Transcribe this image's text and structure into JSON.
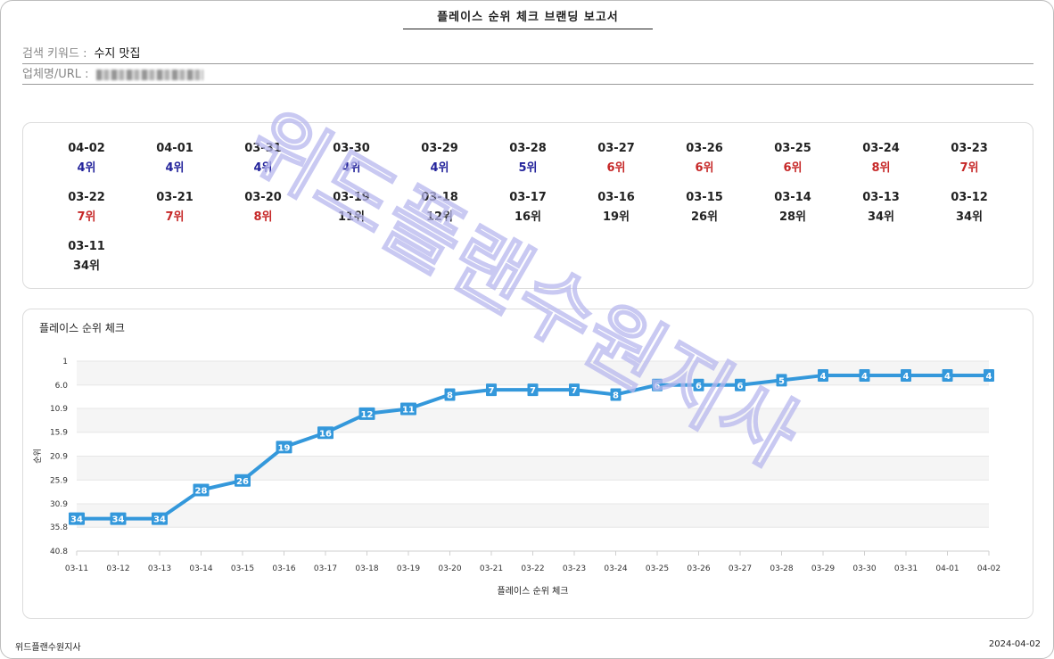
{
  "report": {
    "title": "플레이스 순위 체크 브랜딩 보고서",
    "keyword_label": "검색 키워드 :",
    "keyword_value": "수지 맛집",
    "url_label": "업체명/URL :"
  },
  "rank_grid": [
    {
      "date": "04-02",
      "rank": "4위",
      "color": "#23239b"
    },
    {
      "date": "04-01",
      "rank": "4위",
      "color": "#23239b"
    },
    {
      "date": "03-31",
      "rank": "4위",
      "color": "#23239b"
    },
    {
      "date": "03-30",
      "rank": "4위",
      "color": "#23239b"
    },
    {
      "date": "03-29",
      "rank": "4위",
      "color": "#23239b"
    },
    {
      "date": "03-28",
      "rank": "5위",
      "color": "#23239b"
    },
    {
      "date": "03-27",
      "rank": "6위",
      "color": "#c62828"
    },
    {
      "date": "03-26",
      "rank": "6위",
      "color": "#c62828"
    },
    {
      "date": "03-25",
      "rank": "6위",
      "color": "#c62828"
    },
    {
      "date": "03-24",
      "rank": "8위",
      "color": "#c62828"
    },
    {
      "date": "03-23",
      "rank": "7위",
      "color": "#c62828"
    },
    {
      "date": "03-22",
      "rank": "7위",
      "color": "#c62828"
    },
    {
      "date": "03-21",
      "rank": "7위",
      "color": "#c62828"
    },
    {
      "date": "03-20",
      "rank": "8위",
      "color": "#c62828"
    },
    {
      "date": "03-19",
      "rank": "11위",
      "color": "#222222"
    },
    {
      "date": "03-18",
      "rank": "12위",
      "color": "#222222"
    },
    {
      "date": "03-17",
      "rank": "16위",
      "color": "#222222"
    },
    {
      "date": "03-16",
      "rank": "19위",
      "color": "#222222"
    },
    {
      "date": "03-15",
      "rank": "26위",
      "color": "#222222"
    },
    {
      "date": "03-14",
      "rank": "28위",
      "color": "#222222"
    },
    {
      "date": "03-13",
      "rank": "34위",
      "color": "#222222"
    },
    {
      "date": "03-12",
      "rank": "34위",
      "color": "#222222"
    },
    {
      "date": "03-11",
      "rank": "34위",
      "color": "#222222"
    }
  ],
  "chart_data": {
    "type": "line",
    "title": "플레이스 순위 체크",
    "xlabel": "플레이스 순위 체크",
    "ylabel": "순위",
    "y_reversed": true,
    "ylim": [
      1,
      40.8
    ],
    "y_ticks": [
      "1",
      "6.0",
      "10.9",
      "15.9",
      "20.9",
      "25.9",
      "30.9",
      "35.8",
      "40.8"
    ],
    "x": [
      "03-11",
      "03-12",
      "03-13",
      "03-14",
      "03-15",
      "03-16",
      "03-17",
      "03-18",
      "03-19",
      "03-20",
      "03-21",
      "03-22",
      "03-23",
      "03-24",
      "03-25",
      "03-26",
      "03-27",
      "03-28",
      "03-29",
      "03-30",
      "03-31",
      "04-01",
      "04-02"
    ],
    "series": [
      {
        "values": [
          34,
          34,
          34,
          28,
          26,
          19,
          16,
          12,
          11,
          8,
          7,
          7,
          7,
          8,
          6,
          6,
          6,
          5,
          4,
          4,
          4,
          4,
          4
        ],
        "color": "#3498db"
      }
    ],
    "band_color": "#f5f5f5",
    "grid": true,
    "legend": "none"
  },
  "watermark": {
    "text": "위드플랜수원지사"
  },
  "footer": {
    "left": "위드플랜수원지사",
    "right": "2024-04-02"
  }
}
